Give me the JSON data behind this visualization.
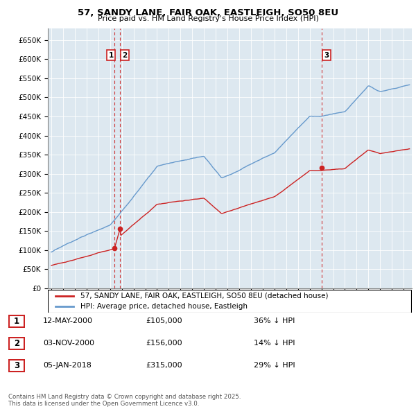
{
  "title": "57, SANDY LANE, FAIR OAK, EASTLEIGH, SO50 8EU",
  "subtitle": "Price paid vs. HM Land Registry's House Price Index (HPI)",
  "hpi_color": "#6699cc",
  "sale_color": "#cc2222",
  "vline_color": "#cc2222",
  "bg_color": "#dde8f0",
  "ylim": [
    0,
    680000
  ],
  "yticks": [
    0,
    50000,
    100000,
    150000,
    200000,
    250000,
    300000,
    350000,
    400000,
    450000,
    500000,
    550000,
    600000,
    650000
  ],
  "sales": [
    {
      "date_num": 2000.37,
      "price": 105000,
      "label": "1"
    },
    {
      "date_num": 2000.84,
      "price": 156000,
      "label": "2"
    },
    {
      "date_num": 2018.01,
      "price": 315000,
      "label": "3"
    }
  ],
  "table_entries": [
    {
      "num": "1",
      "date": "12-MAY-2000",
      "price": "£105,000",
      "note": "36% ↓ HPI"
    },
    {
      "num": "2",
      "date": "03-NOV-2000",
      "price": "£156,000",
      "note": "14% ↓ HPI"
    },
    {
      "num": "3",
      "date": "05-JAN-2018",
      "price": "£315,000",
      "note": "29% ↓ HPI"
    }
  ],
  "footer": "Contains HM Land Registry data © Crown copyright and database right 2025.\nThis data is licensed under the Open Government Licence v3.0.",
  "legend_sale": "57, SANDY LANE, FAIR OAK, EASTLEIGH, SO50 8EU (detached house)",
  "legend_hpi": "HPI: Average price, detached house, Eastleigh"
}
